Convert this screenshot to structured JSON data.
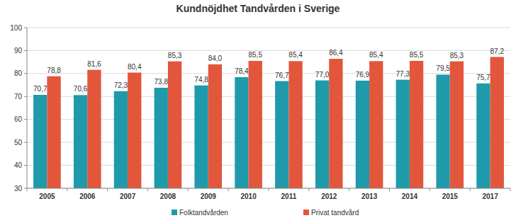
{
  "chart_data": {
    "type": "bar",
    "title": "Kundnöjdhet Tandvården i Sverige",
    "categories": [
      "2005",
      "2006",
      "2007",
      "2008",
      "2009",
      "2010",
      "2011",
      "2012",
      "2013",
      "2014",
      "2015",
      "2017"
    ],
    "series": [
      {
        "name": "Folktandvården",
        "color": "#1f9aaa",
        "values": [
          70.7,
          70.6,
          72.3,
          73.8,
          74.8,
          78.4,
          76.7,
          77.0,
          76.9,
          77.3,
          79.5,
          75.7
        ],
        "value_labels": [
          "70,7",
          "70,6",
          "72,3",
          "73,8",
          "74,8",
          "78,4",
          "76,7",
          "77,0",
          "76,9",
          "77,3",
          "79,5",
          "75,7"
        ]
      },
      {
        "name": "Privat tandvård",
        "color": "#e2563c",
        "values": [
          78.8,
          81.6,
          80.4,
          85.3,
          84.0,
          85.5,
          85.4,
          86.4,
          85.4,
          85.5,
          85.3,
          87.2
        ],
        "value_labels": [
          "78,8",
          "81,6",
          "80,4",
          "85,3",
          "84,0",
          "85,5",
          "85,4",
          "86,4",
          "85,4",
          "85,5",
          "85,3",
          "87,2"
        ]
      }
    ],
    "ylim": [
      30,
      100
    ],
    "yticks": [
      30,
      40,
      50,
      60,
      70,
      80,
      90,
      100
    ],
    "grid": true,
    "data_labels": true,
    "legend": "bottom"
  }
}
